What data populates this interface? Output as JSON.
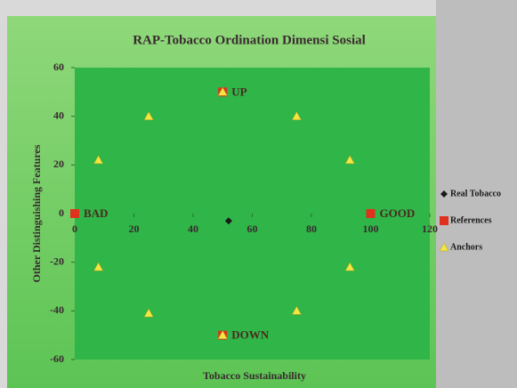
{
  "chart_data": {
    "type": "scatter",
    "title": "RAP-Tobacco Ordination Dimensi Sosial",
    "x_label": "Tobacco Sustainability",
    "y_label": "Other Distinguishing Features",
    "xlim": [
      0,
      120
    ],
    "xticks": [
      0,
      20,
      40,
      60,
      80,
      100,
      120
    ],
    "ylim": [
      -60,
      60
    ],
    "yticks": [
      60,
      40,
      20,
      0,
      -20,
      -40,
      -60
    ],
    "legend": "right",
    "series": [
      {
        "name": "Real Tobacco",
        "color": "#1a1a1a",
        "marker": "diamond",
        "x": [
          52
        ],
        "y": [
          -3
        ]
      },
      {
        "name": "References",
        "color": "#e0301e",
        "marker": "square",
        "x": [
          0,
          100,
          50,
          50
        ],
        "y": [
          0,
          0,
          50,
          -50
        ],
        "labels": [
          "BAD",
          "GOOD",
          "UP",
          "DOWN"
        ]
      },
      {
        "name": "Anchors",
        "color": "#f2e640",
        "marker": "triangle",
        "x": [
          50,
          50,
          8,
          25,
          75,
          93,
          8,
          25,
          75,
          93
        ],
        "y": [
          50,
          -50,
          22,
          40,
          40,
          22,
          -22,
          -41,
          -40,
          -22
        ]
      }
    ]
  }
}
